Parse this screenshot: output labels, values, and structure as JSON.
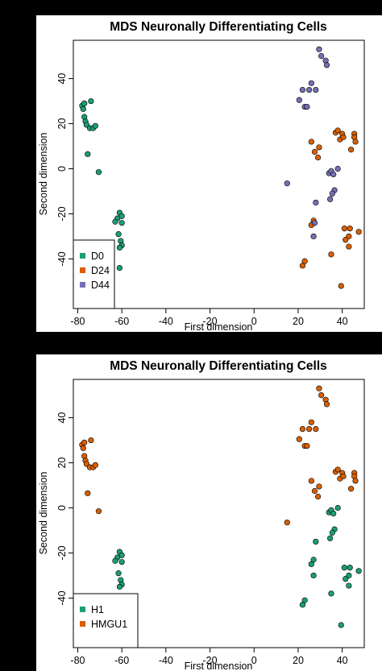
{
  "chart_data": [
    {
      "type": "scatter",
      "title": "MDS Neuronally Differentiating Cells",
      "xlabel": "First dimension",
      "ylabel": "Second dimension",
      "xlim": [
        -82,
        50
      ],
      "ylim": [
        -62,
        57
      ],
      "xticks": [
        -80,
        -60,
        -40,
        -20,
        0,
        20,
        40
      ],
      "yticks": [
        -40,
        -20,
        0,
        20,
        40
      ],
      "grid": false,
      "legend_position": "bottom-left",
      "series": [
        {
          "name": "D0",
          "color": "#1B9E77",
          "points": [
            {
              "x": -78,
              "y": 28
            },
            {
              "x": -77.5,
              "y": 26.5
            },
            {
              "x": -77,
              "y": 29
            },
            {
              "x": -74,
              "y": 30
            },
            {
              "x": -77,
              "y": 23
            },
            {
              "x": -76.5,
              "y": 21
            },
            {
              "x": -76,
              "y": 19.5
            },
            {
              "x": -74.5,
              "y": 18
            },
            {
              "x": -73,
              "y": 18
            },
            {
              "x": -72,
              "y": 19
            },
            {
              "x": -75.5,
              "y": 6.5
            },
            {
              "x": -70.5,
              "y": -1.5
            },
            {
              "x": -61,
              "y": -19.5
            },
            {
              "x": -62,
              "y": -22
            },
            {
              "x": -60,
              "y": -21
            },
            {
              "x": -63,
              "y": -23.5
            },
            {
              "x": -60,
              "y": -24
            },
            {
              "x": -61.5,
              "y": -29
            },
            {
              "x": -60.5,
              "y": -32
            },
            {
              "x": -60,
              "y": -34
            },
            {
              "x": -61,
              "y": -35
            },
            {
              "x": -61,
              "y": -44
            }
          ]
        },
        {
          "name": "D24",
          "color": "#D95F02",
          "points": [
            {
              "x": 26,
              "y": 12
            },
            {
              "x": 27.5,
              "y": 7.5
            },
            {
              "x": 29.5,
              "y": 9.5
            },
            {
              "x": 29,
              "y": 5
            },
            {
              "x": 37,
              "y": 16
            },
            {
              "x": 38,
              "y": 17
            },
            {
              "x": 39,
              "y": 13
            },
            {
              "x": 40,
              "y": 15.5
            },
            {
              "x": 40.5,
              "y": 14
            },
            {
              "x": 45.5,
              "y": 15.5
            },
            {
              "x": 45.5,
              "y": 14
            },
            {
              "x": 46,
              "y": 12
            },
            {
              "x": 44,
              "y": 8.5
            },
            {
              "x": 27,
              "y": -23
            },
            {
              "x": 26,
              "y": -25
            },
            {
              "x": 23,
              "y": -41
            },
            {
              "x": 22,
              "y": -43
            },
            {
              "x": 35,
              "y": -38
            },
            {
              "x": 39.5,
              "y": -52
            },
            {
              "x": 41,
              "y": -26.5
            },
            {
              "x": 43.5,
              "y": -26.5
            },
            {
              "x": 43,
              "y": -30
            },
            {
              "x": 41.5,
              "y": -31.5
            },
            {
              "x": 47.5,
              "y": -28
            },
            {
              "x": 43,
              "y": -34.5
            }
          ]
        },
        {
          "name": "D44",
          "color": "#7570B3",
          "points": [
            {
              "x": 29.5,
              "y": 53
            },
            {
              "x": 30.5,
              "y": 50
            },
            {
              "x": 32.5,
              "y": 48
            },
            {
              "x": 33,
              "y": 46
            },
            {
              "x": 26,
              "y": 38
            },
            {
              "x": 25,
              "y": 35
            },
            {
              "x": 28,
              "y": 35
            },
            {
              "x": 22,
              "y": 35
            },
            {
              "x": 20.5,
              "y": 30.5
            },
            {
              "x": 23,
              "y": 27.5
            },
            {
              "x": 24,
              "y": 27.5
            },
            {
              "x": 15,
              "y": -6.5
            },
            {
              "x": 34,
              "y": -2
            },
            {
              "x": 35,
              "y": -1
            },
            {
              "x": 36,
              "y": -2.5
            },
            {
              "x": 38,
              "y": 0
            },
            {
              "x": 36.5,
              "y": -9.5
            },
            {
              "x": 35.5,
              "y": -11
            },
            {
              "x": 34.5,
              "y": -13.5
            },
            {
              "x": 28,
              "y": -15
            },
            {
              "x": 27.5,
              "y": -24
            },
            {
              "x": 27,
              "y": -30
            }
          ]
        }
      ]
    },
    {
      "type": "scatter",
      "title": "MDS Neuronally Differentiating Cells",
      "xlabel": "First dimension",
      "ylabel": "Second dimension",
      "xlim": [
        -82,
        50
      ],
      "ylim": [
        -62,
        57
      ],
      "xticks": [
        -80,
        -60,
        -40,
        -20,
        0,
        20,
        40
      ],
      "yticks": [
        -40,
        -20,
        0,
        20,
        40
      ],
      "grid": false,
      "legend_position": "bottom-left",
      "series": [
        {
          "name": "H1",
          "color": "#1B9E77",
          "points": [
            {
              "x": -61,
              "y": -19.5
            },
            {
              "x": -62,
              "y": -22
            },
            {
              "x": -60,
              "y": -21
            },
            {
              "x": -63,
              "y": -23.5
            },
            {
              "x": -60,
              "y": -24
            },
            {
              "x": -61.5,
              "y": -29
            },
            {
              "x": -60.5,
              "y": -32
            },
            {
              "x": -60,
              "y": -34
            },
            {
              "x": -61,
              "y": -35
            },
            {
              "x": 34,
              "y": -2
            },
            {
              "x": 35,
              "y": -1
            },
            {
              "x": 36,
              "y": -2.5
            },
            {
              "x": 38,
              "y": 0
            },
            {
              "x": 36.5,
              "y": -9.5
            },
            {
              "x": 35.5,
              "y": -11
            },
            {
              "x": 34.5,
              "y": -13.5
            },
            {
              "x": 28,
              "y": -15
            },
            {
              "x": 27,
              "y": -23
            },
            {
              "x": 26,
              "y": -25
            },
            {
              "x": 27,
              "y": -30
            },
            {
              "x": 23,
              "y": -41
            },
            {
              "x": 22,
              "y": -43
            },
            {
              "x": 35,
              "y": -38
            },
            {
              "x": 39.5,
              "y": -52
            },
            {
              "x": 41,
              "y": -26.5
            },
            {
              "x": 43.5,
              "y": -26.5
            },
            {
              "x": 43,
              "y": -30
            },
            {
              "x": 41.5,
              "y": -31.5
            },
            {
              "x": 47.5,
              "y": -28
            },
            {
              "x": 43,
              "y": -34.5
            }
          ]
        },
        {
          "name": "HMGU1",
          "color": "#D95F02",
          "points": [
            {
              "x": -78,
              "y": 28
            },
            {
              "x": -77.5,
              "y": 26.5
            },
            {
              "x": -77,
              "y": 29
            },
            {
              "x": -74,
              "y": 30
            },
            {
              "x": -77,
              "y": 23
            },
            {
              "x": -76.5,
              "y": 21
            },
            {
              "x": -76,
              "y": 19.5
            },
            {
              "x": -74.5,
              "y": 18
            },
            {
              "x": -73,
              "y": 18
            },
            {
              "x": -72,
              "y": 19
            },
            {
              "x": -75.5,
              "y": 6.5
            },
            {
              "x": -70.5,
              "y": -1.5
            },
            {
              "x": 29.5,
              "y": 53
            },
            {
              "x": 30.5,
              "y": 50
            },
            {
              "x": 32.5,
              "y": 48
            },
            {
              "x": 33,
              "y": 46
            },
            {
              "x": 26,
              "y": 38
            },
            {
              "x": 25,
              "y": 35
            },
            {
              "x": 28,
              "y": 35
            },
            {
              "x": 22,
              "y": 35
            },
            {
              "x": 20.5,
              "y": 30.5
            },
            {
              "x": 23,
              "y": 27.5
            },
            {
              "x": 24,
              "y": 27.5
            },
            {
              "x": 15,
              "y": -6.5
            },
            {
              "x": 26,
              "y": 12
            },
            {
              "x": 27.5,
              "y": 7.5
            },
            {
              "x": 29.5,
              "y": 9.5
            },
            {
              "x": 29,
              "y": 5
            },
            {
              "x": 37,
              "y": 16
            },
            {
              "x": 38,
              "y": 17
            },
            {
              "x": 39,
              "y": 13
            },
            {
              "x": 40,
              "y": 15.5
            },
            {
              "x": 40.5,
              "y": 14
            },
            {
              "x": 45.5,
              "y": 15.5
            },
            {
              "x": 45.5,
              "y": 14
            },
            {
              "x": 46,
              "y": 12
            },
            {
              "x": 44,
              "y": 8.5
            }
          ]
        }
      ]
    }
  ]
}
